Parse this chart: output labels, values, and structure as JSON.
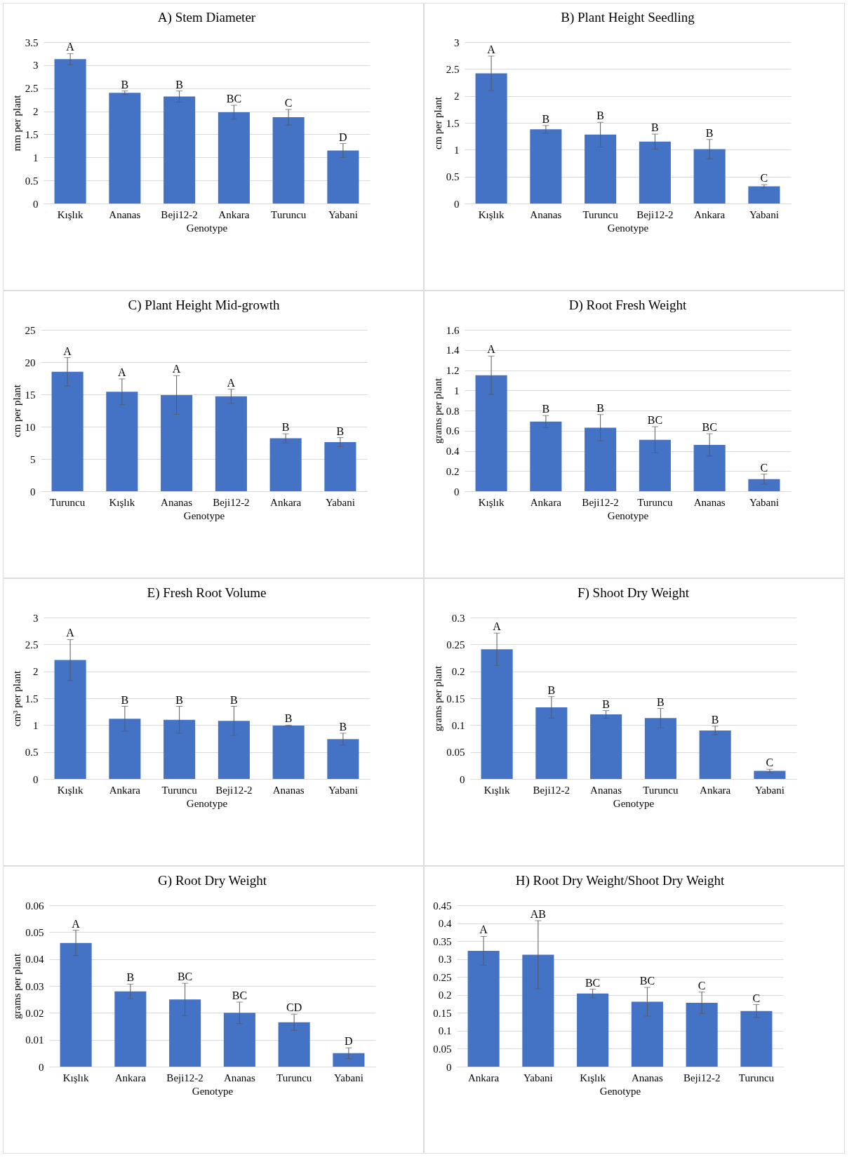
{
  "chart_data": [
    {
      "type": "bar",
      "title": "A) Stem Diameter",
      "xlabel": "Genotype",
      "ylabel": "mm per plant",
      "categories": [
        "Kışlık",
        "Ananas",
        "Beji12-2",
        "Ankara",
        "Turuncu",
        "Yabani"
      ],
      "values": [
        3.13,
        2.4,
        2.32,
        1.98,
        1.87,
        1.15
      ],
      "errors": [
        0.12,
        0.04,
        0.12,
        0.15,
        0.17,
        0.15
      ],
      "color": "#4472c4",
      "ylim": [
        0,
        3.5
      ],
      "yticks": [
        0,
        0.5,
        1,
        1.5,
        2,
        2.5,
        3,
        3.5
      ],
      "grid": "y",
      "annotations": [
        {
          "text": "A",
          "x": "Kışlık",
          "y": 3.25
        },
        {
          "text": "B",
          "x": "Ananas",
          "y": 2.44
        },
        {
          "text": "B",
          "x": "Beji12-2",
          "y": 2.44
        },
        {
          "text": "BC",
          "x": "Ankara",
          "y": 2.13
        },
        {
          "text": "C",
          "x": "Turuncu",
          "y": 2.04
        },
        {
          "text": "D",
          "x": "Yabani",
          "y": 1.3
        }
      ]
    },
    {
      "type": "bar",
      "title": "B) Plant Height Seedling",
      "xlabel": "Genotype",
      "ylabel": "cm per plant",
      "categories": [
        "Kışlık",
        "Ananas",
        "Turuncu",
        "Beji12-2",
        "Ankara",
        "Yabani"
      ],
      "values": [
        2.42,
        1.38,
        1.28,
        1.15,
        1.01,
        0.32
      ],
      "errors": [
        0.32,
        0.07,
        0.23,
        0.14,
        0.18,
        0.03
      ],
      "color": "#4472c4",
      "ylim": [
        0,
        3
      ],
      "yticks": [
        0,
        0.5,
        1,
        1.5,
        2,
        2.5,
        3
      ],
      "grid": "y",
      "annotations": [
        {
          "text": "A",
          "x": "Kışlık",
          "y": 2.74
        },
        {
          "text": "B",
          "x": "Ananas",
          "y": 1.45
        },
        {
          "text": "B",
          "x": "Turuncu",
          "y": 1.51
        },
        {
          "text": "B",
          "x": "Beji12-2",
          "y": 1.29
        },
        {
          "text": "B",
          "x": "Ankara",
          "y": 1.19
        },
        {
          "text": "C",
          "x": "Yabani",
          "y": 0.35
        }
      ]
    },
    {
      "type": "bar",
      "title": "C) Plant Height Mid-growth",
      "xlabel": "Genotype",
      "ylabel": "cm per plant",
      "categories": [
        "Turuncu",
        "Kışlık",
        "Ananas",
        "Beji12-2",
        "Ankara",
        "Yabani"
      ],
      "values": [
        18.5,
        15.4,
        14.9,
        14.7,
        8.2,
        7.6
      ],
      "errors": [
        2.2,
        2,
        3,
        1.1,
        0.7,
        0.7
      ],
      "color": "#4472c4",
      "ylim": [
        0,
        25
      ],
      "yticks": [
        0,
        5,
        10,
        15,
        20,
        25
      ],
      "grid": "y",
      "annotations": [
        {
          "text": "A",
          "x": "Turuncu",
          "y": 20.7
        },
        {
          "text": "A",
          "x": "Kışlık",
          "y": 17.4
        },
        {
          "text": "A",
          "x": "Ananas",
          "y": 17.9
        },
        {
          "text": "A",
          "x": "Beji12-2",
          "y": 15.8
        },
        {
          "text": "B",
          "x": "Ankara",
          "y": 8.9
        },
        {
          "text": "B",
          "x": "Yabani",
          "y": 8.3
        }
      ]
    },
    {
      "type": "bar",
      "title": "D) Root Fresh Weight",
      "xlabel": "Genotype",
      "ylabel": "grams per plant",
      "categories": [
        "Kışlık",
        "Ankara",
        "Beji12-2",
        "Turuncu",
        "Ananas",
        "Yabani"
      ],
      "values": [
        1.15,
        0.69,
        0.63,
        0.51,
        0.46,
        0.12
      ],
      "errors": [
        0.19,
        0.06,
        0.13,
        0.13,
        0.11,
        0.05
      ],
      "color": "#4472c4",
      "ylim": [
        0,
        1.6
      ],
      "yticks": [
        0,
        0.2,
        0.4,
        0.6,
        0.8,
        1,
        1.2,
        1.4,
        1.6
      ],
      "grid": "y",
      "annotations": [
        {
          "text": "A",
          "x": "Kışlık",
          "y": 1.34
        },
        {
          "text": "B",
          "x": "Ankara",
          "y": 0.75
        },
        {
          "text": "B",
          "x": "Beji12-2",
          "y": 0.76
        },
        {
          "text": "BC",
          "x": "Turuncu",
          "y": 0.64
        },
        {
          "text": "BC",
          "x": "Ananas",
          "y": 0.57
        },
        {
          "text": "C",
          "x": "Yabani",
          "y": 0.17
        }
      ]
    },
    {
      "type": "bar",
      "title": "E) Fresh Root Volume",
      "xlabel": "Genotype",
      "ylabel": "cm³ per plant",
      "categories": [
        "Kışlık",
        "Ankara",
        "Turuncu",
        "Beji12-2",
        "Ananas",
        "Yabani"
      ],
      "values": [
        2.21,
        1.12,
        1.1,
        1.08,
        0.99,
        0.74
      ],
      "errors": [
        0.38,
        0.23,
        0.25,
        0.27,
        0.01,
        0.11
      ],
      "color": "#4472c4",
      "ylim": [
        0,
        3
      ],
      "yticks": [
        0,
        0.5,
        1,
        1.5,
        2,
        2.5,
        3
      ],
      "grid": "y",
      "annotations": [
        {
          "text": "A",
          "x": "Kışlık",
          "y": 2.59
        },
        {
          "text": "B",
          "x": "Ankara",
          "y": 1.35
        },
        {
          "text": "B",
          "x": "Turuncu",
          "y": 1.35
        },
        {
          "text": "B",
          "x": "Beji12-2",
          "y": 1.35
        },
        {
          "text": "B",
          "x": "Ananas",
          "y": 1.0
        },
        {
          "text": "B",
          "x": "Yabani",
          "y": 0.85
        }
      ]
    },
    {
      "type": "bar",
      "title": "F) Shoot Dry Weight",
      "xlabel": "Genotype",
      "ylabel": "grams per plant",
      "categories": [
        "Kışlık",
        "Beji12-2",
        "Ananas",
        "Turuncu",
        "Ankara",
        "Yabani"
      ],
      "values": [
        0.241,
        0.133,
        0.12,
        0.113,
        0.09,
        0.015
      ],
      "errors": [
        0.03,
        0.02,
        0.007,
        0.018,
        0.008,
        0.003
      ],
      "color": "#4472c4",
      "ylim": [
        0,
        0.3
      ],
      "yticks": [
        0,
        0.05,
        0.1,
        0.15,
        0.2,
        0.25,
        0.3
      ],
      "grid": "y",
      "annotations": [
        {
          "text": "A",
          "x": "Kışlık",
          "y": 0.271
        },
        {
          "text": "B",
          "x": "Beji12-2",
          "y": 0.153
        },
        {
          "text": "B",
          "x": "Ananas",
          "y": 0.127
        },
        {
          "text": "B",
          "x": "Turuncu",
          "y": 0.131
        },
        {
          "text": "B",
          "x": "Ankara",
          "y": 0.098
        },
        {
          "text": "C",
          "x": "Yabani",
          "y": 0.018
        }
      ]
    },
    {
      "type": "bar",
      "title": "G) Root Dry Weight",
      "xlabel": "Genotype",
      "ylabel": "grams per plant",
      "categories": [
        "Kışlık",
        "Ankara",
        "Beji12-2",
        "Ananas",
        "Turuncu",
        "Yabani"
      ],
      "values": [
        0.046,
        0.028,
        0.025,
        0.02,
        0.0165,
        0.005
      ],
      "errors": [
        0.0047,
        0.0027,
        0.006,
        0.004,
        0.003,
        0.002
      ],
      "color": "#4472c4",
      "ylim": [
        0,
        0.06
      ],
      "yticks": [
        0,
        0.01,
        0.02,
        0.03,
        0.04,
        0.05,
        0.06
      ],
      "grid": "y",
      "annotations": [
        {
          "text": "A",
          "x": "Kışlık",
          "y": 0.0507
        },
        {
          "text": "B",
          "x": "Ankara",
          "y": 0.0307
        },
        {
          "text": "BC",
          "x": "Beji12-2",
          "y": 0.031
        },
        {
          "text": "BC",
          "x": "Ananas",
          "y": 0.024
        },
        {
          "text": "CD",
          "x": "Turuncu",
          "y": 0.0195
        },
        {
          "text": "D",
          "x": "Yabani",
          "y": 0.007
        }
      ]
    },
    {
      "type": "bar",
      "title": "H) Root Dry Weight/Shoot Dry Weight",
      "xlabel": "Genotype",
      "categories": [
        "Ankara",
        "Yabani",
        "Kışlık",
        "Ananas",
        "Beji12-2",
        "Turuncu"
      ],
      "values": [
        0.323,
        0.312,
        0.204,
        0.181,
        0.178,
        0.155
      ],
      "errors": [
        0.04,
        0.095,
        0.012,
        0.04,
        0.03,
        0.018
      ],
      "color": "#4472c4",
      "ylim": [
        0,
        0.45
      ],
      "yticks": [
        0,
        0.05,
        0.1,
        0.15,
        0.2,
        0.25,
        0.3,
        0.35,
        0.4,
        0.45
      ],
      "grid": "y",
      "annotations": [
        {
          "text": "A",
          "x": "Ankara",
          "y": 0.363
        },
        {
          "text": "AB",
          "x": "Yabani",
          "y": 0.407
        },
        {
          "text": "BC",
          "x": "Kışlık",
          "y": 0.216
        },
        {
          "text": "BC",
          "x": "Ananas",
          "y": 0.221
        },
        {
          "text": "C",
          "x": "Beji12-2",
          "y": 0.208
        },
        {
          "text": "C",
          "x": "Turuncu",
          "y": 0.173
        }
      ]
    }
  ]
}
